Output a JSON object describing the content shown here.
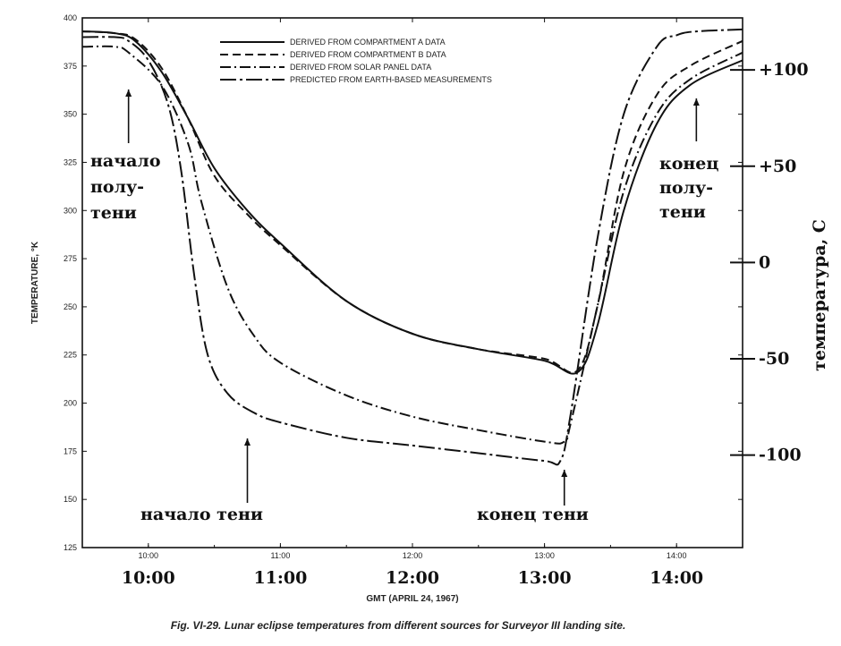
{
  "chart_data": {
    "type": "line",
    "caption": "Fig. VI-29. Lunar eclipse temperatures from different sources for Surveyor III landing site.",
    "xlabel": "GMT (APRIL 24, 1967)",
    "ylabel_left": "TEMPERATURE, °K",
    "ylabel_right": "температура, С",
    "xlim": [
      9.5,
      14.5
    ],
    "ylim": [
      125,
      400
    ],
    "x_ticks_small": [
      {
        "x": 10,
        "label": "10:00"
      },
      {
        "x": 11,
        "label": "11:00"
      },
      {
        "x": 12,
        "label": "12:00"
      },
      {
        "x": 13,
        "label": "13:00"
      },
      {
        "x": 14,
        "label": "14:00"
      }
    ],
    "x_ticks_big": [
      {
        "x": 10,
        "label": "10:00"
      },
      {
        "x": 11,
        "label": "11:00"
      },
      {
        "x": 12,
        "label": "12:00"
      },
      {
        "x": 13,
        "label": "13:00"
      },
      {
        "x": 14,
        "label": "14:00"
      }
    ],
    "y_ticks_left": [
      {
        "y": 400,
        "label": "400"
      },
      {
        "y": 375,
        "label": "375"
      },
      {
        "y": 350,
        "label": "350"
      },
      {
        "y": 325,
        "label": "325"
      },
      {
        "y": 300,
        "label": "300"
      },
      {
        "y": 275,
        "label": "275"
      },
      {
        "y": 250,
        "label": "250"
      },
      {
        "y": 225,
        "label": "225"
      },
      {
        "y": 200,
        "label": "200"
      },
      {
        "y": 175,
        "label": "175"
      },
      {
        "y": 150,
        "label": "150"
      },
      {
        "y": 125,
        "label": "125"
      }
    ],
    "y_ticks_right": [
      {
        "y": 373,
        "label": "+100"
      },
      {
        "y": 323,
        "label": "+50"
      },
      {
        "y": 273,
        "label": "0"
      },
      {
        "y": 223,
        "label": "-50"
      },
      {
        "y": 173,
        "label": "-100"
      }
    ],
    "series": [
      {
        "name": "DERIVED FROM COMPARTMENT A DATA",
        "dash": "solid",
        "color": "#111111",
        "x": [
          9.5,
          9.75,
          9.9,
          10.1,
          10.3,
          10.5,
          10.75,
          11.0,
          11.5,
          12.0,
          12.5,
          13.0,
          13.25,
          13.4,
          13.6,
          13.85,
          14.1,
          14.5
        ],
        "y": [
          393,
          392,
          388,
          372,
          348,
          322,
          300,
          283,
          253,
          236,
          228,
          222,
          216,
          240,
          300,
          345,
          365,
          378
        ]
      },
      {
        "name": "DERIVED FROM COMPARTMENT B DATA",
        "dash": "dashed",
        "color": "#111111",
        "x": [
          9.5,
          9.75,
          9.9,
          10.1,
          10.3,
          10.5,
          10.75,
          11.0,
          11.5,
          12.0,
          12.5,
          13.0,
          13.25,
          13.4,
          13.6,
          13.85,
          14.1,
          14.5
        ],
        "y": [
          393,
          392,
          389,
          374,
          348,
          318,
          298,
          282,
          253,
          236,
          228,
          223,
          217,
          250,
          320,
          360,
          375,
          388
        ]
      },
      {
        "name": "DERIVED FROM SOLAR PANEL DATA",
        "dash": "dashdot",
        "color": "#111111",
        "x": [
          9.5,
          9.75,
          9.85,
          10.1,
          10.3,
          10.4,
          10.6,
          10.8,
          11.0,
          11.5,
          12.0,
          12.5,
          13.0,
          13.15,
          13.2,
          13.4,
          13.6,
          13.85,
          14.1,
          14.5
        ],
        "y": [
          385,
          385,
          382,
          365,
          335,
          305,
          260,
          235,
          221,
          204,
          193,
          186,
          180,
          180,
          190,
          250,
          310,
          350,
          368,
          382
        ]
      },
      {
        "name": "PREDICTED FROM EARTH-BASED MEASUREMENTS",
        "dash": "dashdotlong",
        "color": "#111111",
        "x": [
          9.5,
          9.75,
          9.85,
          10.0,
          10.15,
          10.25,
          10.35,
          10.45,
          10.6,
          10.8,
          11.0,
          11.5,
          12.0,
          12.5,
          13.0,
          13.12,
          13.2,
          13.4,
          13.6,
          13.85,
          14.0,
          14.15,
          14.5
        ],
        "y": [
          390,
          390,
          388,
          378,
          355,
          320,
          265,
          225,
          205,
          195,
          190,
          182,
          178,
          174,
          170,
          170,
          195,
          285,
          350,
          385,
          391,
          393,
          394
        ]
      }
    ],
    "annotations": [
      {
        "lines": [
          "начало",
          "полу-",
          "тени"
        ],
        "x": 9.85
      },
      {
        "lines": [
          "конец",
          "полу-",
          "тени"
        ],
        "x": 14.15
      },
      {
        "lines": [
          "начало тени"
        ],
        "x": 10.75
      },
      {
        "lines": [
          "конец тени"
        ],
        "x": 13.15
      }
    ]
  }
}
